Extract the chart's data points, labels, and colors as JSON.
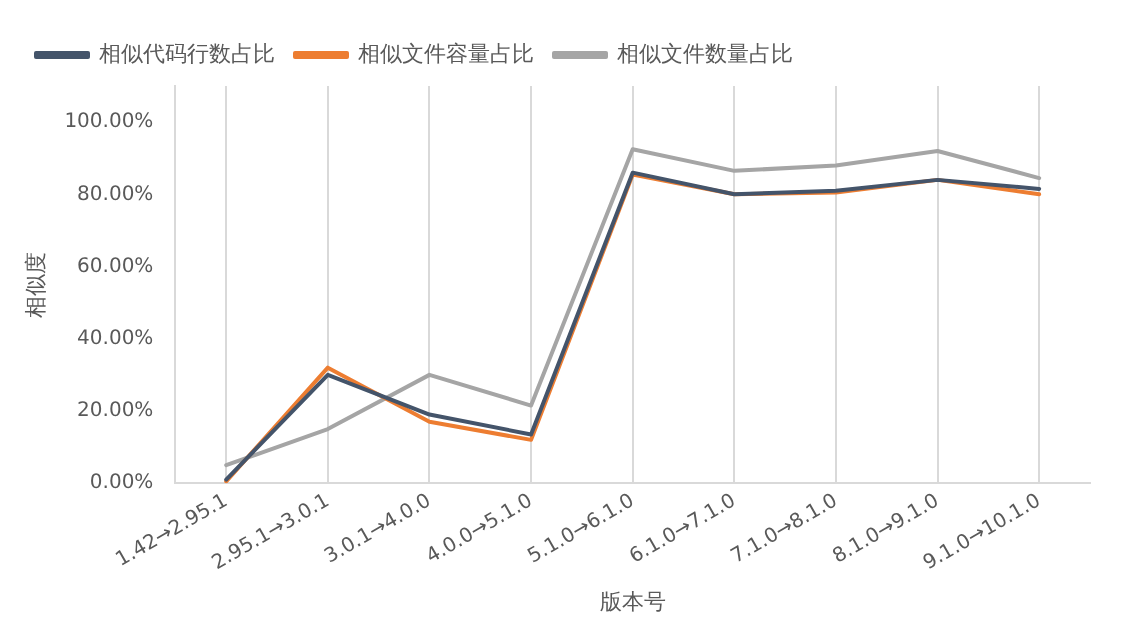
{
  "chart_data": {
    "type": "line",
    "xlabel": "版本号",
    "ylabel": "相似度",
    "categories": [
      "1.42→2.95.1",
      "2.95.1→3.0.1",
      "3.0.1→4.0.0",
      "4.0.0→5.1.0",
      "5.1.0→6.1.0",
      "6.1.0→7.1.0",
      "7.1.0→8.1.0",
      "8.1.0→9.1.0",
      "9.1.0→10.1.0"
    ],
    "series": [
      {
        "name": "相似代码行数占比",
        "color": "#44546a",
        "values": [
          1,
          30,
          19,
          13.5,
          86,
          80,
          81,
          84,
          81.5
        ]
      },
      {
        "name": "相似文件容量占比",
        "color": "#ed7d31",
        "values": [
          0.5,
          32,
          17,
          12,
          85.5,
          80,
          80.5,
          84,
          80
        ]
      },
      {
        "name": "相似文件数量占比",
        "color": "#a5a5a5",
        "values": [
          5,
          15,
          30,
          21.5,
          92.5,
          86.5,
          88,
          92,
          84.5
        ]
      }
    ],
    "ylim": [
      0,
      110
    ],
    "yticks": [
      {
        "value": 0,
        "label": "0.00%"
      },
      {
        "value": 20,
        "label": "20.00%"
      },
      {
        "value": 40,
        "label": "40.00%"
      },
      {
        "value": 60,
        "label": "60.00%"
      },
      {
        "value": 80,
        "label": "80.00%"
      },
      {
        "value": 100,
        "label": "100.00%"
      }
    ],
    "grid": "x",
    "legend": "top left",
    "marker": "none",
    "line_style": "solid"
  }
}
